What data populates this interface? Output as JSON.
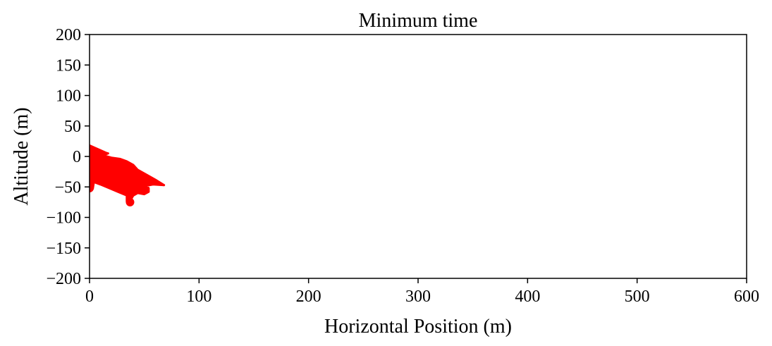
{
  "chart_data": {
    "type": "area",
    "title": "Minimum time",
    "xlabel": "Horizontal Position (m)",
    "ylabel": "Altitude (m)",
    "xlim": [
      0,
      600
    ],
    "ylim": [
      -200,
      200
    ],
    "xticks": [
      0,
      100,
      200,
      300,
      400,
      500,
      600
    ],
    "yticks": [
      200,
      150,
      100,
      50,
      0,
      -50,
      -100,
      -150,
      -200
    ],
    "xtick_labels": [
      "0",
      "100",
      "200",
      "300",
      "400",
      "500",
      "600"
    ],
    "ytick_labels": [
      "200",
      "150",
      "100",
      "50",
      "0",
      "−50",
      "−100",
      "−150",
      "−200"
    ],
    "grid": false,
    "colors": {
      "series": "#ff0000",
      "axis": "#000000",
      "background": "#ffffff"
    },
    "series": [
      {
        "kind": "filled-shape",
        "points": [
          [
            0,
            18
          ],
          [
            5,
            14
          ],
          [
            10,
            10
          ],
          [
            15,
            6
          ],
          [
            17,
            5
          ],
          [
            12,
            2
          ],
          [
            20,
            -2
          ],
          [
            28,
            -4
          ],
          [
            34,
            -8
          ],
          [
            40,
            -14
          ],
          [
            44,
            -22
          ],
          [
            52,
            -30
          ],
          [
            60,
            -38
          ],
          [
            68,
            -47
          ],
          [
            58,
            -46
          ],
          [
            52,
            -48
          ],
          [
            54,
            -52
          ],
          [
            54,
            -58
          ],
          [
            50,
            -62
          ],
          [
            44,
            -60
          ],
          [
            40,
            -64
          ],
          [
            38,
            -70
          ],
          [
            39,
            -76
          ],
          [
            36,
            -78
          ],
          [
            34,
            -74
          ],
          [
            34,
            -64
          ],
          [
            26,
            -58
          ],
          [
            18,
            -52
          ],
          [
            10,
            -46
          ],
          [
            4,
            -42
          ],
          [
            3,
            -53
          ],
          [
            0,
            -54
          ]
        ]
      },
      {
        "kind": "line",
        "points": [
          [
            45,
            -36
          ],
          [
            68,
            -47
          ]
        ]
      },
      {
        "kind": "marker",
        "points": [
          [
            37,
            -75
          ],
          [
            0,
            -52
          ]
        ]
      }
    ]
  }
}
